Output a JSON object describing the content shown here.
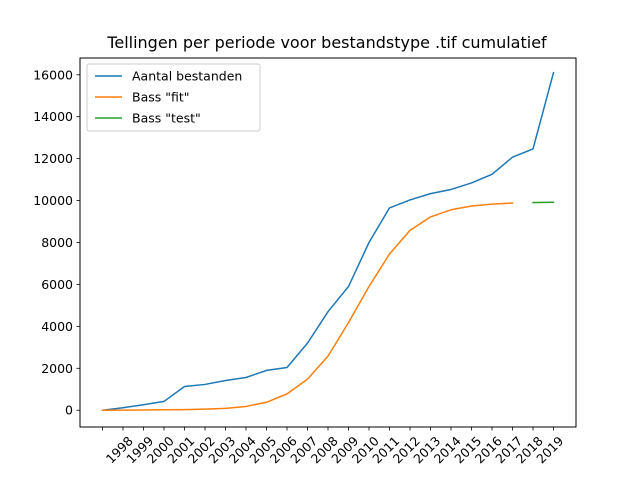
{
  "chart_data": {
    "type": "line",
    "title": "Tellingen per periode voor bestandstype .tif cumulatief",
    "xlabel": "",
    "ylabel": "",
    "x": [
      "1997",
      "1998",
      "1999",
      "2000",
      "2001",
      "2002",
      "2003",
      "2004",
      "2005",
      "2006",
      "2007",
      "2008",
      "2009",
      "2010",
      "2011",
      "2012",
      "2013",
      "2014",
      "2015",
      "2016",
      "2017",
      "2018",
      "2019"
    ],
    "x_tick_labels": [
      "",
      "1998",
      "1999",
      "2000",
      "2001",
      "2002",
      "2003",
      "2004",
      "2005",
      "2006",
      "2007",
      "2008",
      "2009",
      "2010",
      "2011",
      "2012",
      "2013",
      "2014",
      "2015",
      "2016",
      "2017",
      "2018",
      "2019"
    ],
    "yticks": [
      0,
      2000,
      4000,
      6000,
      8000,
      10000,
      12000,
      14000,
      16000
    ],
    "ylim": [
      -800,
      16800
    ],
    "grid": false,
    "legend_position": "top-left",
    "series": [
      {
        "name": "Aantal bestanden",
        "color": "#1f77b4",
        "values": [
          0,
          120,
          260,
          420,
          1130,
          1230,
          1420,
          1560,
          1900,
          2040,
          3200,
          4700,
          5900,
          8000,
          9650,
          10030,
          10330,
          10530,
          10840,
          11250,
          12070,
          12460,
          16100
        ]
      },
      {
        "name": "Bass \"fit\"",
        "color": "#ff7f0e",
        "values": [
          0,
          5,
          10,
          20,
          30,
          50,
          90,
          180,
          380,
          780,
          1480,
          2580,
          4180,
          5900,
          7450,
          8580,
          9220,
          9560,
          9740,
          9830,
          9880,
          null,
          null
        ]
      },
      {
        "name": "Bass \"test\"",
        "color": "#2ca02c",
        "values": [
          null,
          null,
          null,
          null,
          null,
          null,
          null,
          null,
          null,
          null,
          null,
          null,
          null,
          null,
          null,
          null,
          null,
          null,
          null,
          null,
          null,
          9905,
          9920
        ]
      }
    ]
  }
}
